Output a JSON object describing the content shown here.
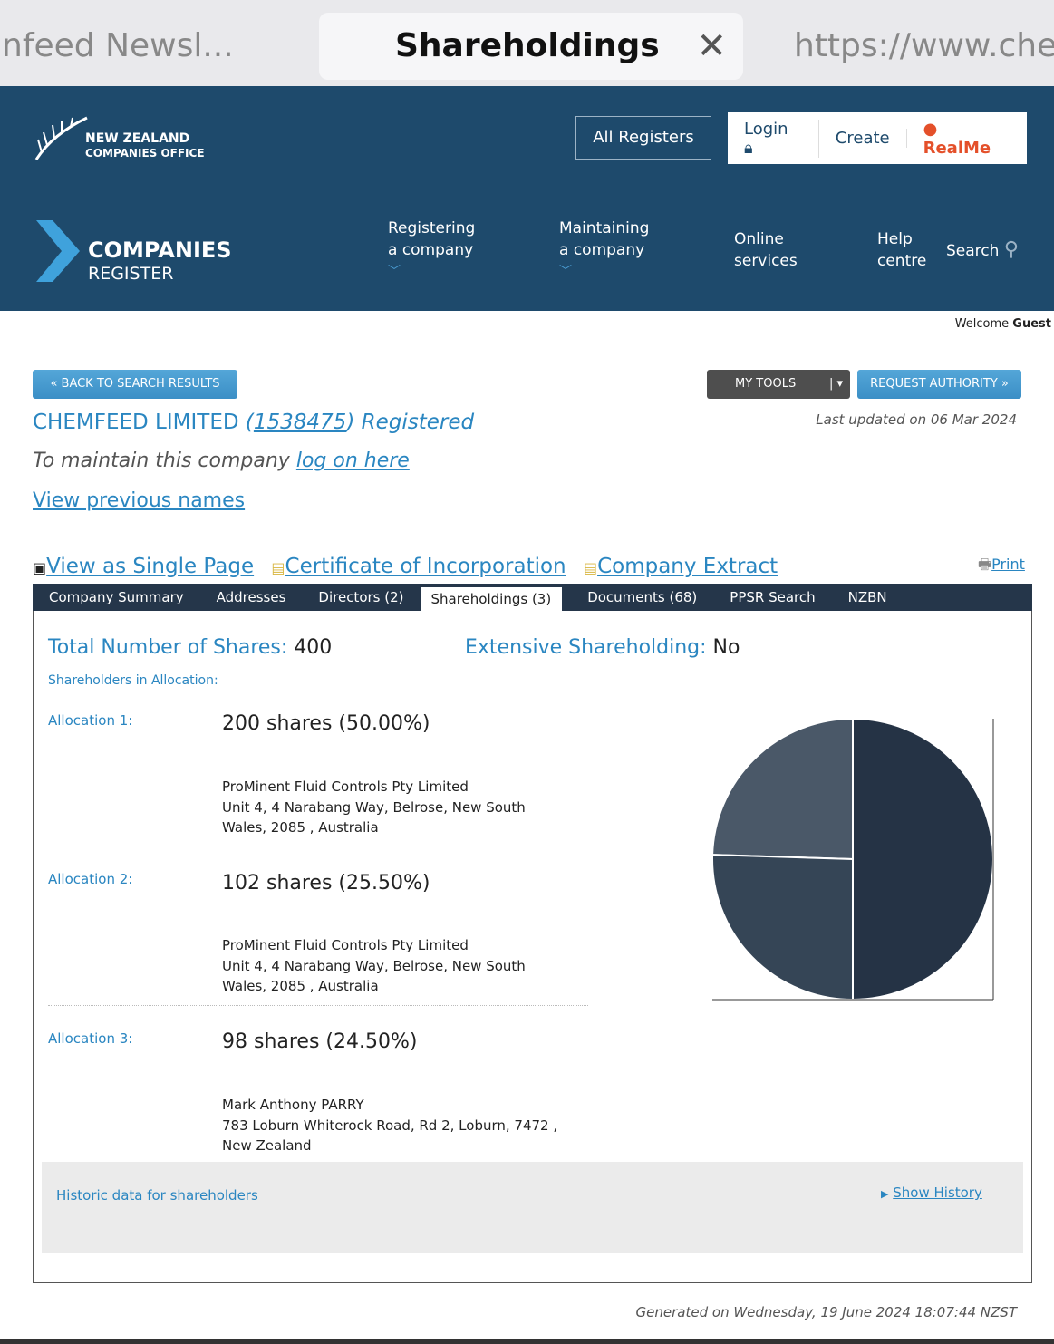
{
  "browser": {
    "tabs": [
      {
        "label": "nfeed Newsl..."
      },
      {
        "label": "Shareholdings"
      },
      {
        "label": "https://www.chen"
      }
    ]
  },
  "header": {
    "logo_line1": "NEW ZEALAND",
    "logo_line2": "COMPANIES OFFICE",
    "all_registers": "All Registers",
    "login": "Login",
    "create": "Create",
    "realme": "RealMe",
    "brand1": "COMPANIES",
    "brand2": "REGISTER",
    "nav": [
      {
        "line1": "Registering",
        "line2": "a company"
      },
      {
        "line1": "Maintaining",
        "line2": "a company"
      },
      {
        "line1": "Online",
        "line2": "services"
      },
      {
        "line1": "Help",
        "line2": "centre"
      }
    ],
    "search": "Search"
  },
  "welcome": {
    "prefix": "Welcome",
    "user": "Guest"
  },
  "buttons": {
    "back": "« BACK TO SEARCH RESULTS",
    "my_tools": "MY TOOLS",
    "request_authority": "REQUEST AUTHORITY »"
  },
  "company": {
    "name": "CHEMFEED LIMITED",
    "number": "1538475",
    "status": "Registered",
    "last_updated": "Last updated on 06 Mar 2024",
    "maintain_text": "To maintain this company",
    "logon_link": "log on here",
    "previous_names": "View previous names"
  },
  "links": {
    "single_page": "View as Single Page",
    "certificate": "Certificate of Incorporation",
    "extract": "Company Extract",
    "print": "Print"
  },
  "tabs": [
    "Company Summary",
    "Addresses",
    "Directors (2)",
    "Shareholdings (3)",
    "Documents (68)",
    "PPSR Search",
    "NZBN"
  ],
  "shareholdings": {
    "total_label": "Total Number of Shares:",
    "total": "400",
    "extensive_label": "Extensive Shareholding:",
    "extensive": "No",
    "shareholders_label": "Shareholders in Allocation:",
    "allocations": [
      {
        "label": "Allocation 1:",
        "shares": "200 shares (50.00%)",
        "name": "ProMinent Fluid Controls Pty Limited",
        "addr1": "Unit 4, 4 Narabang Way, Belrose, New South",
        "addr2": "Wales, 2085 , Australia"
      },
      {
        "label": "Allocation 2:",
        "shares": "102 shares (25.50%)",
        "name": "ProMinent Fluid Controls Pty Limited",
        "addr1": "Unit 4, 4 Narabang Way, Belrose, New South",
        "addr2": "Wales, 2085 , Australia"
      },
      {
        "label": "Allocation 3:",
        "shares": "98 shares (24.50%)",
        "name": "Mark Anthony PARRY",
        "addr1": "783 Loburn Whiterock Road, Rd 2, Loburn, 7472 ,",
        "addr2": "New Zealand"
      }
    ]
  },
  "history": {
    "label": "Historic data for shareholders",
    "show": "Show History"
  },
  "footer": {
    "generated": "Generated on Wednesday, 19 June 2024 18:07:44 NZST"
  },
  "chart_data": {
    "type": "pie",
    "categories": [
      "Allocation 1",
      "Allocation 2",
      "Allocation 3"
    ],
    "values": [
      200,
      102,
      98
    ],
    "colors": [
      "#253345",
      "#354556",
      "#4a5868"
    ]
  }
}
